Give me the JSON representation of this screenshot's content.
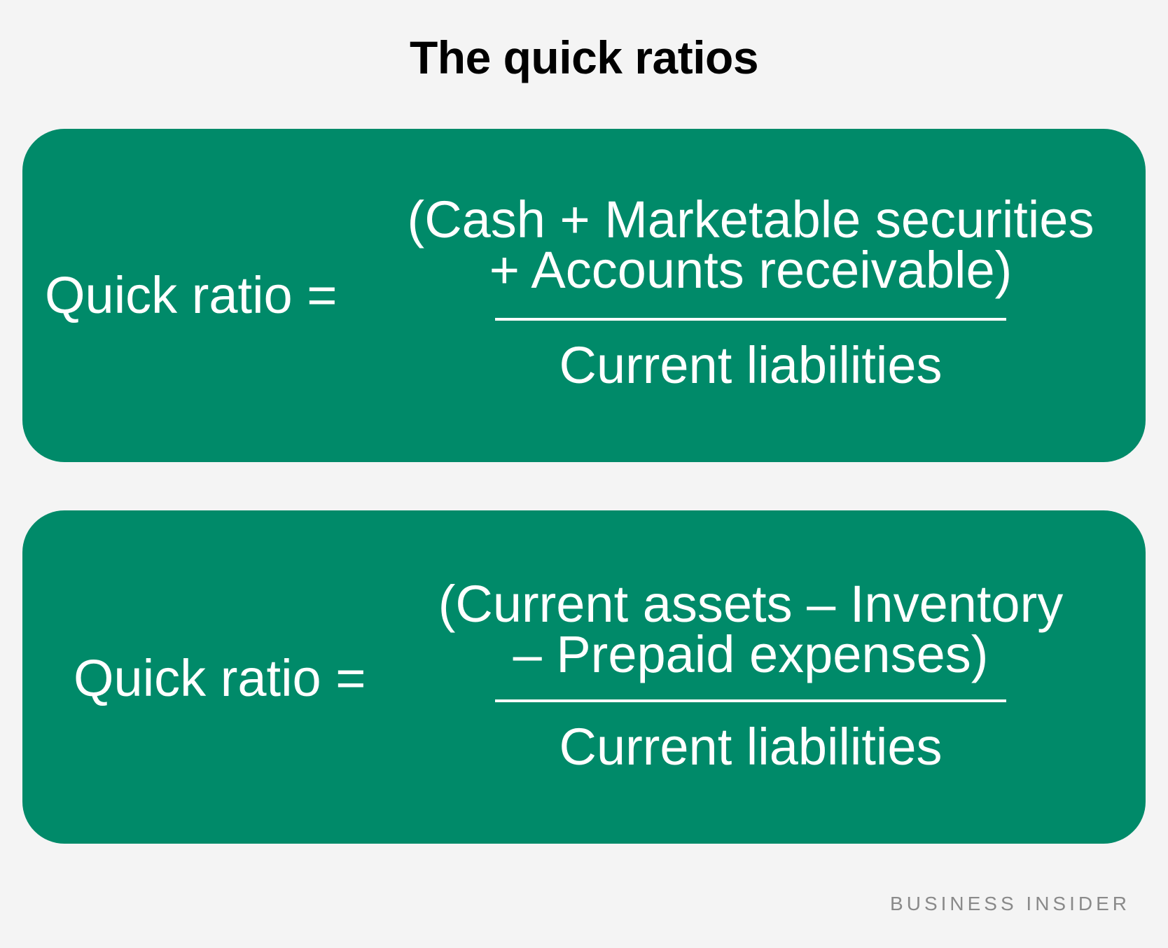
{
  "title": "The quick ratios",
  "colors": {
    "background": "#f4f4f4",
    "card": "#008a69",
    "text_on_card": "#ffffff",
    "brand": "#8a8a8a"
  },
  "formulas": [
    {
      "lhs": "Quick ratio =",
      "numerator_line1": "(Cash + Marketable securities",
      "numerator_line2": "+ Accounts receivable)",
      "denominator": "Current liabilities"
    },
    {
      "lhs": "Quick ratio =",
      "numerator_line1": "(Current assets – Inventory",
      "numerator_line2": "– Prepaid expenses)",
      "denominator": "Current liabilities"
    }
  ],
  "brand": "BUSINESS INSIDER"
}
